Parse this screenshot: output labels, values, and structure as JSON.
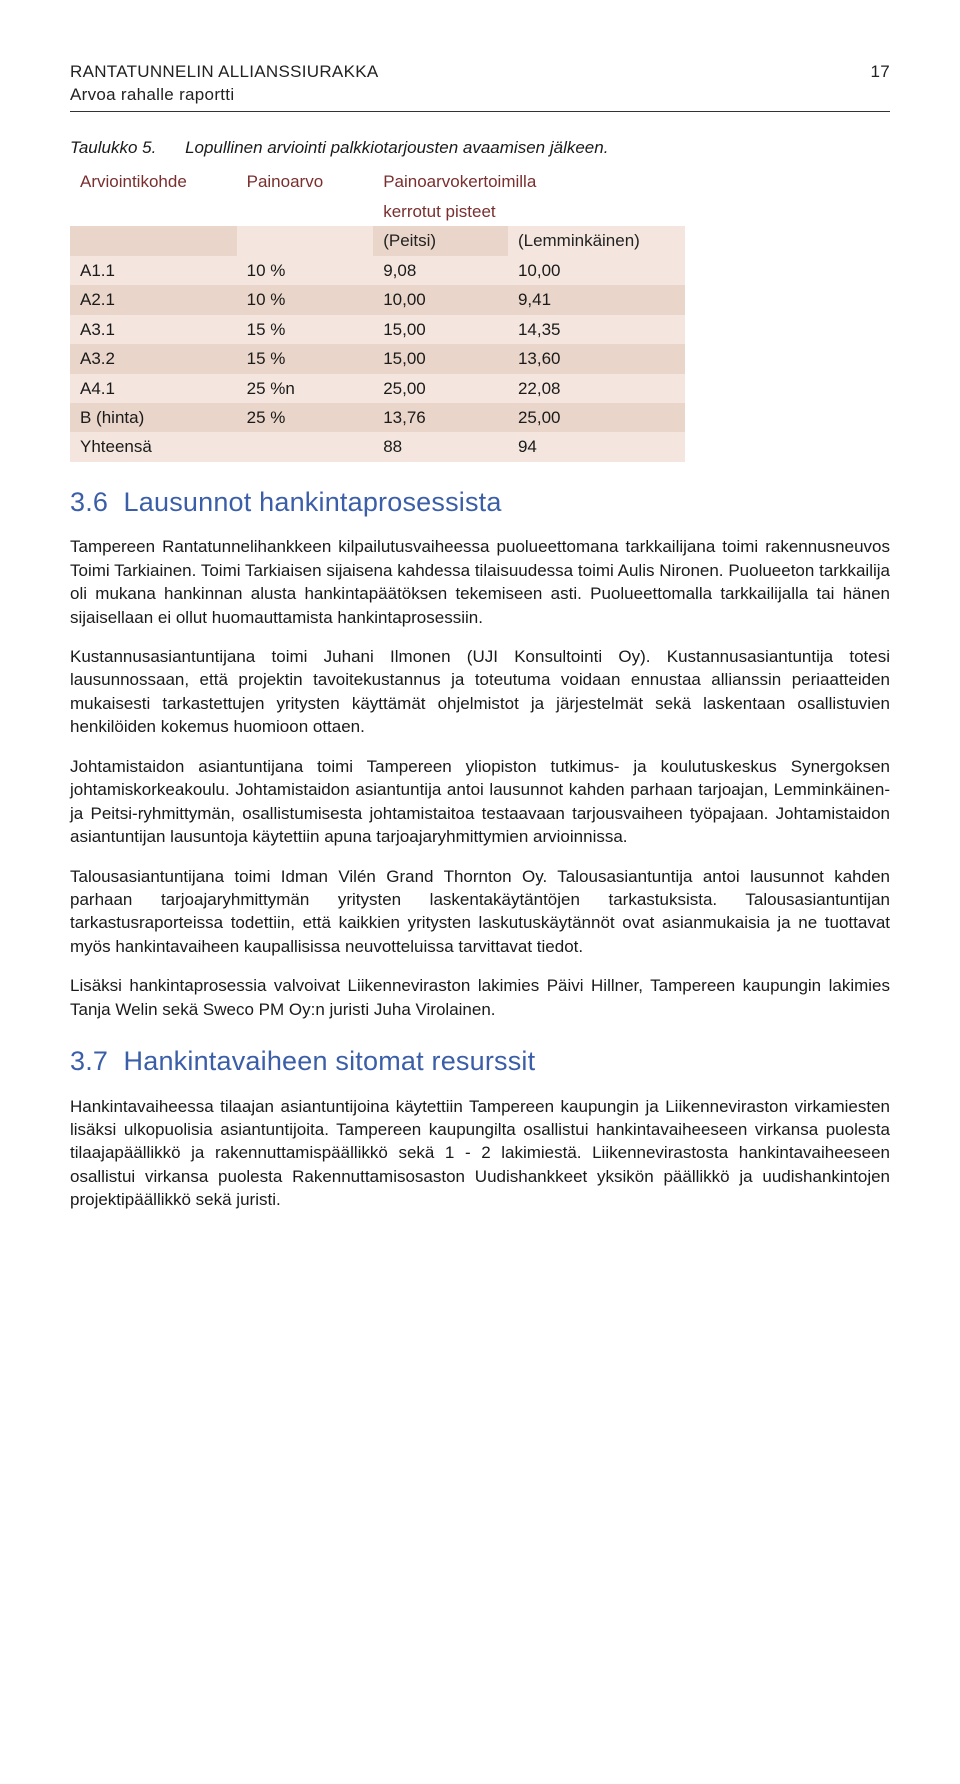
{
  "header": {
    "line1": "RANTATUNNELIN ALLIANSSIURAKKA",
    "line2": "Arvoa rahalle raportti",
    "page_number": "17"
  },
  "table": {
    "number": "Taulukko 5.",
    "caption": "Lopullinen arviointi palkkiotarjousten avaamisen jälkeen.",
    "head1": {
      "c1": "Arviointikohde",
      "c2": "Painoarvo",
      "c3": "Painoarvokertoimilla"
    },
    "head2": {
      "c3a": "kerrotut pisteet"
    },
    "head3": {
      "c3": "(Peitsi)",
      "c4": "(Lemminkäinen)"
    },
    "rows": [
      {
        "c1": "A1.1",
        "c2": "10 %",
        "c3": "9,08",
        "c4": "10,00"
      },
      {
        "c1": "A2.1",
        "c2": "10 %",
        "c3": "10,00",
        "c4": "9,41"
      },
      {
        "c1": "A3.1",
        "c2": "15 %",
        "c3": "15,00",
        "c4": "14,35"
      },
      {
        "c1": "A3.2",
        "c2": "15 %",
        "c3": "15,00",
        "c4": "13,60"
      },
      {
        "c1": "A4.1",
        "c2": "25 %n",
        "c3": "25,00",
        "c4": "22,08"
      },
      {
        "c1": "B (hinta)",
        "c2": "25 %",
        "c3": "13,76",
        "c4": "25,00"
      },
      {
        "c1": "Yhteensä",
        "c2": "",
        "c3": "88",
        "c4": "94"
      }
    ],
    "band_colors": {
      "even": "#f4e6de",
      "odd": "#e9d5c9"
    },
    "head_color": "#7a2e2e"
  },
  "sections": {
    "s36": {
      "num": "3.6",
      "title": "Lausunnot hankintaprosessista",
      "p1": "Tampereen Rantatunnelihankkeen kilpailutusvaiheessa puolueettomana tarkkailijana toimi rakennusneuvos Toimi Tarkiainen. Toimi Tarkiaisen sijaisena kahdessa tilaisuudessa toimi Aulis Nironen. Puolueeton tarkkailija oli mukana hankinnan alusta hankintapäätöksen tekemiseen asti. Puolueettomalla tarkkailijalla tai hänen sijaisellaan ei ollut huomauttamista hankintaprosessiin.",
      "p2": "Kustannusasiantuntijana toimi Juhani Ilmonen (UJI Konsultointi Oy). Kustannusasiantuntija totesi lausunnossaan, että projektin tavoitekustannus ja toteutuma voidaan ennustaa allianssin periaatteiden mukaisesti tarkastettujen yritysten käyttämät ohjelmistot ja järjestelmät sekä laskentaan osallistuvien henkilöiden kokemus huomioon ottaen.",
      "p3": "Johtamistaidon asiantuntijana toimi Tampereen yliopiston tutkimus- ja koulutuskeskus Synergoksen johtamiskorkeakoulu. Johtamistaidon asiantuntija antoi lausunnot kahden parhaan tarjoajan, Lemminkäinen- ja Peitsi-ryhmittymän, osallistumisesta johtamistaitoa testaavaan tarjousvaiheen työpajaan. Johtamistaidon asiantuntijan lausuntoja käytettiin apuna tarjoajaryhmittymien arvioinnissa.",
      "p4": "Talousasiantuntijana toimi Idman Vilén Grand Thornton Oy. Talousasiantuntija antoi lausunnot kahden parhaan tarjoajaryhmittymän yritysten laskentakäytäntöjen tarkastuksista. Talousasiantuntijan tarkastusraporteissa todettiin, että kaikkien yritysten laskutuskäytännöt ovat asianmukaisia ja ne tuottavat myös hankintavaiheen kaupallisissa neuvotteluissa tarvittavat tiedot.",
      "p5": "Lisäksi hankintaprosessia valvoivat Liikenneviraston lakimies Päivi Hillner, Tampereen kaupungin lakimies Tanja Welin sekä Sweco PM Oy:n juristi Juha Virolainen."
    },
    "s37": {
      "num": "3.7",
      "title": "Hankintavaiheen sitomat resurssit",
      "p1": "Hankintavaiheessa tilaajan asiantuntijoina käytettiin Tampereen kaupungin ja Liikenneviraston virkamiesten lisäksi ulkopuolisia asiantuntijoita. Tampereen kaupungilta osallistui hankintavaiheeseen virkansa puolesta tilaajapäällikkö ja rakennuttamispäällikkö sekä 1 - 2 lakimiestä. Liikennevirastosta hankintavaiheeseen osallistui virkansa puolesta Rakennuttamisosaston Uudishankkeet yksikön päällikkö ja uudishankintojen projektipäällikkö sekä juristi."
    }
  },
  "styling": {
    "heading_color": "#3b5ea8",
    "body_font": "Gill Sans / humanist sans-serif",
    "body_fontsize_pt": 13,
    "heading_fontsize_pt": 20,
    "page_bg": "#ffffff"
  }
}
